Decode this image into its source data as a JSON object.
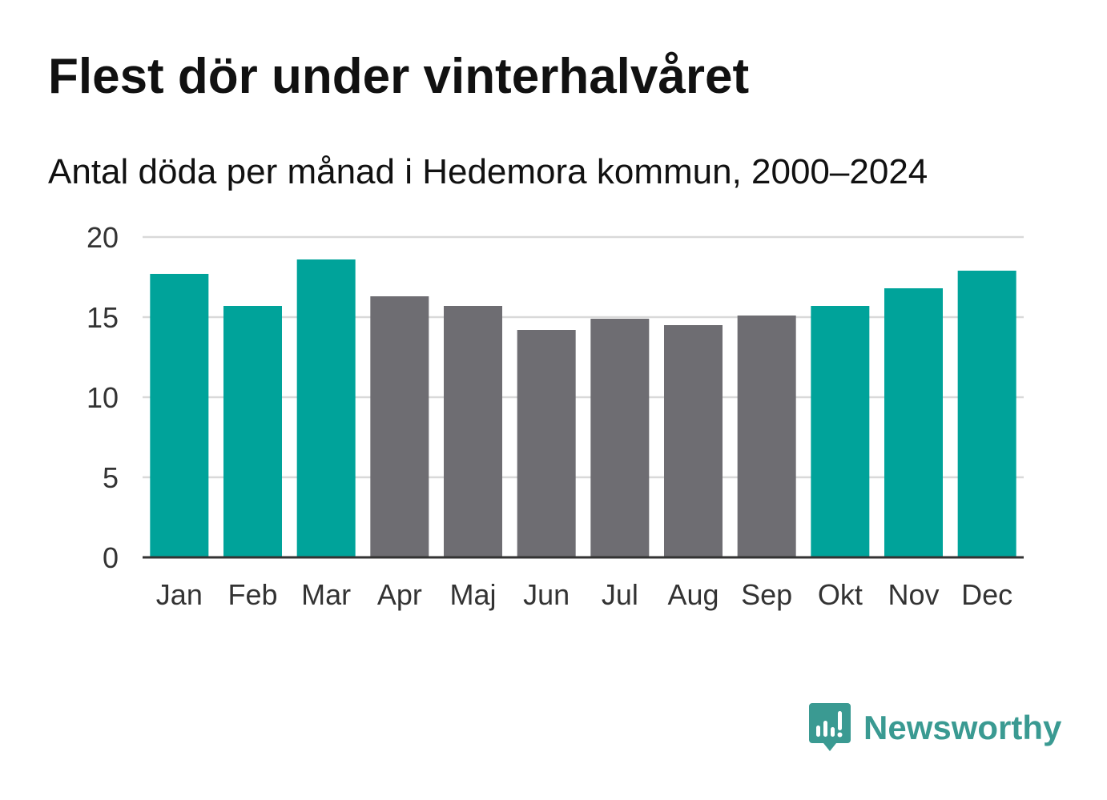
{
  "header": {
    "title": "Flest dör under vinterhalvåret",
    "subtitle": "Antal döda per månad i Hedemora kommun, 2000–2024"
  },
  "brand": {
    "name": "Newsworthy",
    "icon": "newsworthy-logo-icon",
    "color": "#3a9a92"
  },
  "colors": {
    "winter": "#00a39a",
    "summer": "#6e6d72",
    "grid": "#d9d9d9",
    "axis": "#333333"
  },
  "chart_data": {
    "type": "bar",
    "title": "Flest dör under vinterhalvåret",
    "subtitle": "Antal döda per månad i Hedemora kommun, 2000–2024",
    "xlabel": "",
    "ylabel": "",
    "ylim": [
      0,
      20
    ],
    "yticks": [
      0,
      5,
      10,
      15,
      20
    ],
    "grid": true,
    "categories": [
      "Jan",
      "Feb",
      "Mar",
      "Apr",
      "Maj",
      "Jun",
      "Jul",
      "Aug",
      "Sep",
      "Okt",
      "Nov",
      "Dec"
    ],
    "values": [
      17.7,
      15.7,
      18.6,
      16.3,
      15.7,
      14.2,
      14.9,
      14.5,
      15.1,
      15.7,
      16.8,
      17.9
    ],
    "groups": [
      "winter",
      "winter",
      "winter",
      "summer",
      "summer",
      "summer",
      "summer",
      "summer",
      "summer",
      "winter",
      "winter",
      "winter"
    ]
  }
}
